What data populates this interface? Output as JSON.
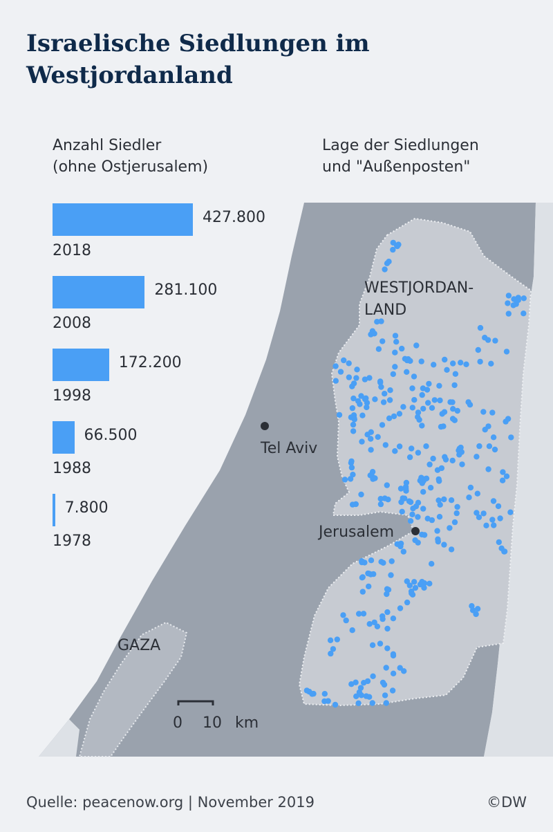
{
  "title": "Israelische Siedlungen im Westjordanland",
  "chart_heading": {
    "line1": "Anzahl Siedler",
    "line2": "(ohne Ostjerusalem)"
  },
  "map_heading": {
    "line1": "Lage der Siedlungen",
    "line2": "und \"Außenposten\""
  },
  "chart_data": {
    "type": "bar",
    "title": "Anzahl Siedler (ohne Ostjerusalem)",
    "categories": [
      "2018",
      "2008",
      "1998",
      "1988",
      "1978"
    ],
    "values": [
      427800,
      281100,
      172200,
      66500,
      7800
    ],
    "value_labels": [
      "427.800",
      "281.100",
      "172.200",
      "66.500",
      "7.800"
    ],
    "orientation": "horizontal",
    "color": "#4a9ff5"
  },
  "map": {
    "region_label_line1": "WESTJORDAN-",
    "region_label_line2": "LAND",
    "gaza_label": "GAZA",
    "cities": [
      {
        "name": "Tel Aviv"
      },
      {
        "name": "Jerusalem"
      }
    ],
    "scale": {
      "start": "0",
      "end": "10",
      "unit": "km"
    },
    "settlement_color": "#4a9ff5"
  },
  "footer": {
    "source": "Quelle: peacenow.org | November 2019",
    "credit": "©DW"
  }
}
